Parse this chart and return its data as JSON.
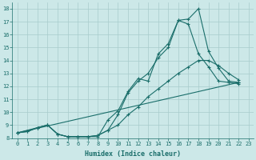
{
  "xlabel": "Humidex (Indice chaleur)",
  "xlim": [
    -0.5,
    23.5
  ],
  "ylim": [
    8,
    18.5
  ],
  "xticks": [
    0,
    1,
    2,
    3,
    4,
    5,
    6,
    7,
    8,
    9,
    10,
    11,
    12,
    13,
    14,
    15,
    16,
    17,
    18,
    19,
    20,
    21,
    22,
    23
  ],
  "yticks": [
    8,
    9,
    10,
    11,
    12,
    13,
    14,
    15,
    16,
    17,
    18
  ],
  "bg_color": "#cce8e8",
  "line_color": "#1a6e6a",
  "grid_color": "#a8cccc",
  "lines": [
    {
      "x": [
        0,
        1,
        2,
        3,
        4,
        5,
        6,
        7,
        8,
        9,
        10,
        11,
        12,
        13,
        14,
        15,
        16,
        17,
        18,
        19,
        20,
        21,
        22
      ],
      "y": [
        8.4,
        8.5,
        8.8,
        9.0,
        8.3,
        8.1,
        8.1,
        8.1,
        8.1,
        9.4,
        10.1,
        11.6,
        12.6,
        12.4,
        14.5,
        15.3,
        17.1,
        17.2,
        18.0,
        14.7,
        13.4,
        12.4,
        12.3
      ]
    },
    {
      "x": [
        0,
        1,
        2,
        3,
        4,
        5,
        6,
        7,
        8,
        9,
        10,
        11,
        12,
        13,
        14,
        15,
        16,
        17,
        18,
        19,
        20,
        21,
        22
      ],
      "y": [
        8.4,
        8.5,
        8.8,
        9.0,
        8.3,
        8.1,
        8.1,
        8.1,
        8.2,
        8.6,
        9.8,
        11.5,
        12.4,
        13.0,
        14.2,
        15.0,
        17.1,
        16.8,
        14.5,
        13.5,
        12.4,
        12.3,
        12.2
      ]
    },
    {
      "x": [
        0,
        2,
        3,
        4,
        5,
        6,
        7,
        8,
        9,
        10,
        11,
        12,
        13,
        14,
        15,
        16,
        17,
        18,
        19,
        20,
        21,
        22
      ],
      "y": [
        8.4,
        8.8,
        9.0,
        8.3,
        8.1,
        8.1,
        8.1,
        8.2,
        8.6,
        9.0,
        9.8,
        10.4,
        11.2,
        11.8,
        12.4,
        13.0,
        13.5,
        14.0,
        14.0,
        13.6,
        13.0,
        12.5
      ]
    },
    {
      "x": [
        0,
        22
      ],
      "y": [
        8.4,
        12.3
      ]
    }
  ]
}
